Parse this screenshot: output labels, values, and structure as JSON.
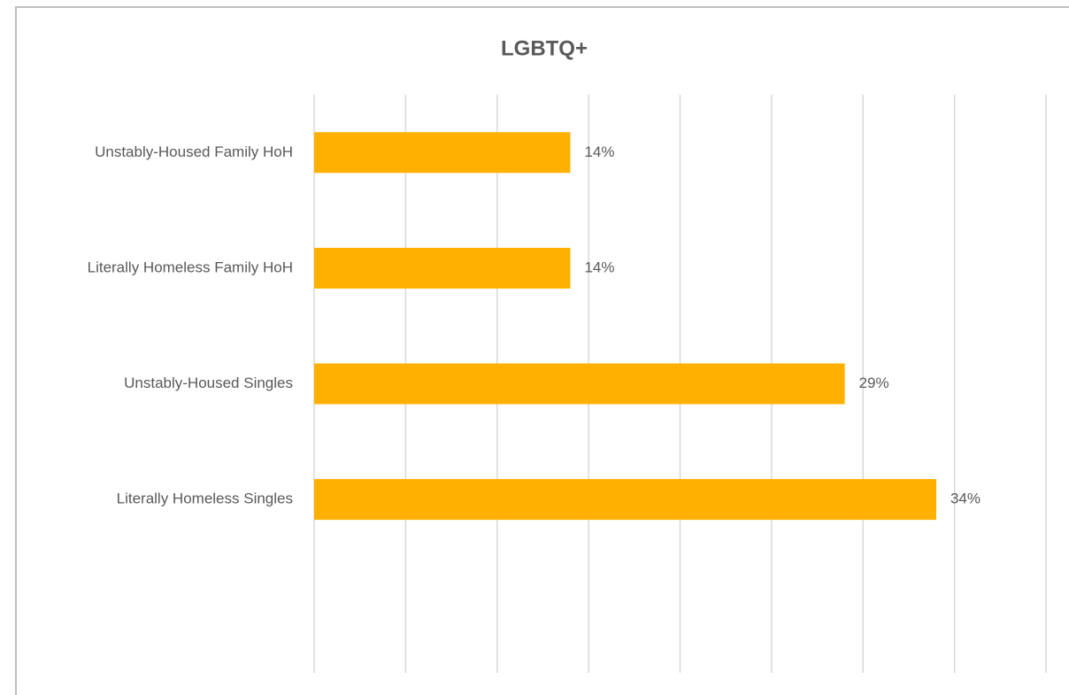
{
  "chart_data": {
    "type": "hbar",
    "title": "LGBTQ+",
    "categories": [
      "Unstably-Housed Family HoH",
      "Literally Homeless Family HoH",
      "Unstably-Housed Singles",
      "Literally Homeless Singles",
      null
    ],
    "values": [
      14,
      14,
      29,
      34,
      null
    ],
    "value_labels": [
      "14%",
      "14%",
      "29%",
      "34%",
      null
    ],
    "color": "#ffb000",
    "xlim": [
      0,
      40
    ],
    "xticks": [
      0,
      5,
      10,
      15,
      20,
      25,
      30,
      35,
      40
    ],
    "grid": true
  }
}
